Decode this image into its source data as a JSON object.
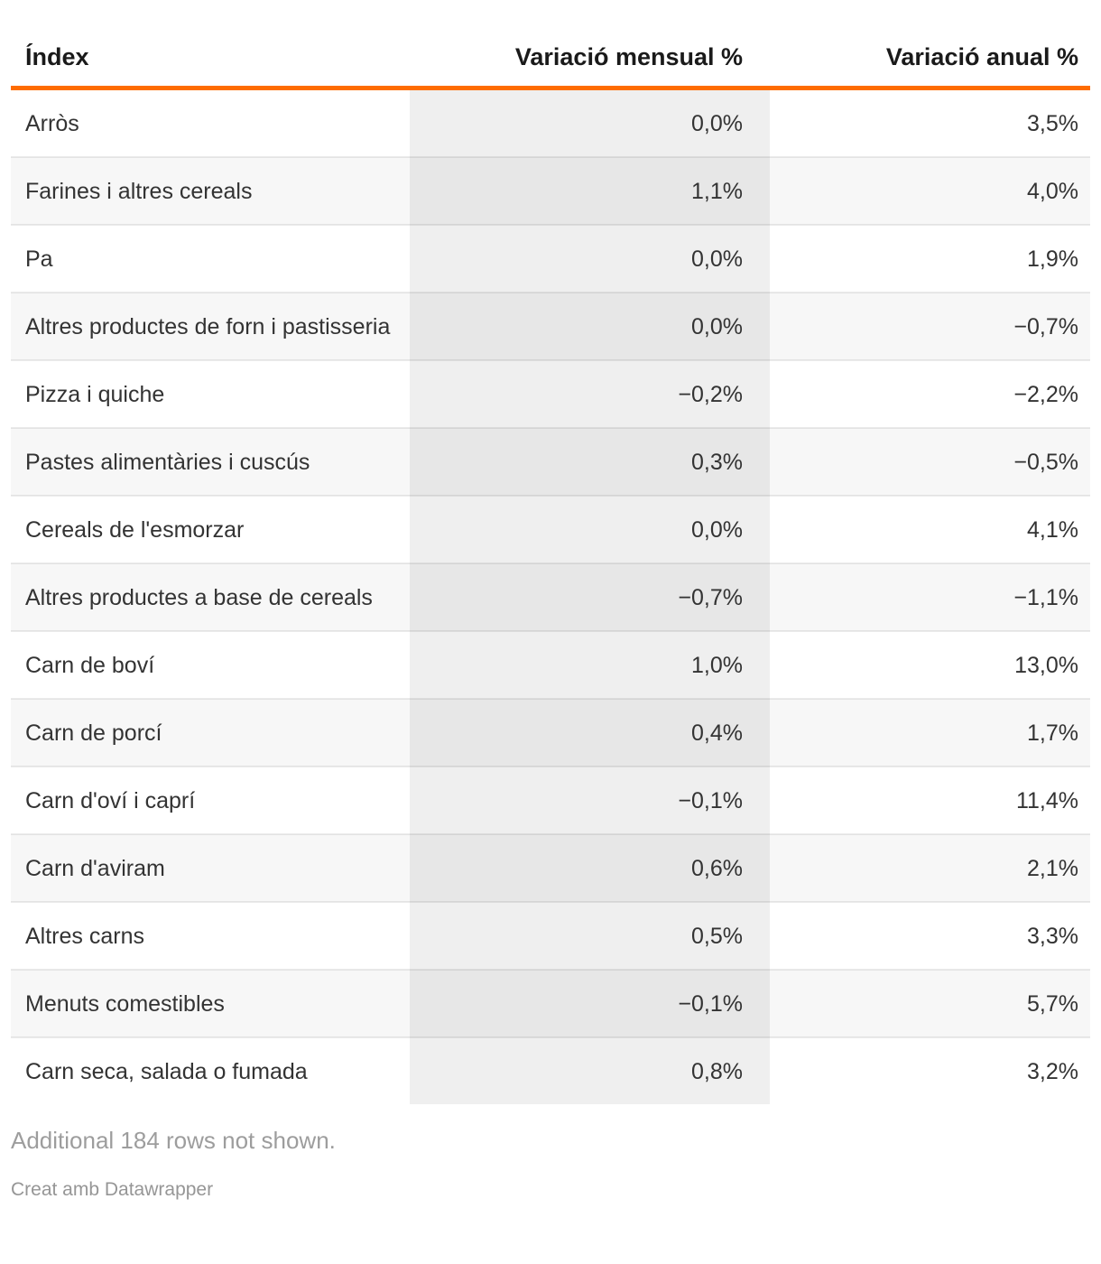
{
  "colors": {
    "header_rule": "#fe6c00",
    "row_alt_bg": "#f7f7f7",
    "highlight_column_bg": "#efefef",
    "body_text": "#333333",
    "header_text": "#1a1a1a",
    "note_text": "#9d9d9d"
  },
  "table": {
    "columns": [
      {
        "label": "Índex",
        "align": "left"
      },
      {
        "label": "Variació mensual %",
        "align": "right"
      },
      {
        "label": "Variació anual %",
        "align": "right"
      }
    ],
    "rows": [
      {
        "index": "Arròs",
        "monthly": "0,0%",
        "annual": "3,5%"
      },
      {
        "index": "Farines i altres cereals",
        "monthly": "1,1%",
        "annual": "4,0%"
      },
      {
        "index": "Pa",
        "monthly": "0,0%",
        "annual": "1,9%"
      },
      {
        "index": "Altres productes de forn i pastisseria",
        "monthly": "0,0%",
        "annual": "−0,7%"
      },
      {
        "index": "Pizza i quiche",
        "monthly": "−0,2%",
        "annual": "−2,2%"
      },
      {
        "index": "Pastes alimentàries i cuscús",
        "monthly": "0,3%",
        "annual": "−0,5%"
      },
      {
        "index": "Cereals de l'esmorzar",
        "monthly": "0,0%",
        "annual": "4,1%"
      },
      {
        "index": "Altres productes a base de cereals",
        "monthly": "−0,7%",
        "annual": "−1,1%"
      },
      {
        "index": "Carn de boví",
        "monthly": "1,0%",
        "annual": "13,0%"
      },
      {
        "index": "Carn de porcí",
        "monthly": "0,4%",
        "annual": "1,7%"
      },
      {
        "index": "Carn d'oví i caprí",
        "monthly": "−0,1%",
        "annual": "11,4%"
      },
      {
        "index": "Carn d'aviram",
        "monthly": "0,6%",
        "annual": "2,1%"
      },
      {
        "index": "Altres carns",
        "monthly": "0,5%",
        "annual": "3,3%"
      },
      {
        "index": "Menuts comestibles",
        "monthly": "−0,1%",
        "annual": "5,7%"
      },
      {
        "index": "Carn seca, salada o fumada",
        "monthly": "0,8%",
        "annual": "3,2%"
      }
    ]
  },
  "footer": {
    "additional_rows_note": "Additional 184 rows not shown.",
    "attribution": "Creat amb Datawrapper"
  },
  "chart_data": {
    "type": "table",
    "title": "",
    "columns": [
      "Índex",
      "Variació mensual %",
      "Variació anual %"
    ],
    "categories": [
      "Arròs",
      "Farines i altres cereals",
      "Pa",
      "Altres productes de forn i pastisseria",
      "Pizza i quiche",
      "Pastes alimentàries i cuscús",
      "Cereals de l'esmorzar",
      "Altres productes a base de cereals",
      "Carn de boví",
      "Carn de porcí",
      "Carn d'oví i caprí",
      "Carn d'aviram",
      "Altres carns",
      "Menuts comestibles",
      "Carn seca, salada o fumada"
    ],
    "series": [
      {
        "name": "Variació mensual %",
        "values": [
          0.0,
          1.1,
          0.0,
          0.0,
          -0.2,
          0.3,
          0.0,
          -0.7,
          1.0,
          0.4,
          -0.1,
          0.6,
          0.5,
          -0.1,
          0.8
        ]
      },
      {
        "name": "Variació anual %",
        "values": [
          3.5,
          4.0,
          1.9,
          -0.7,
          -2.2,
          -0.5,
          4.1,
          -1.1,
          13.0,
          1.7,
          11.4,
          2.1,
          3.3,
          5.7,
          3.2
        ]
      }
    ],
    "layout_hints": {
      "highlighted_column": "Variació mensual %",
      "zebra_striping": true,
      "header_rule_color": "#fe6c00",
      "additional_rows_hidden": 184
    }
  }
}
